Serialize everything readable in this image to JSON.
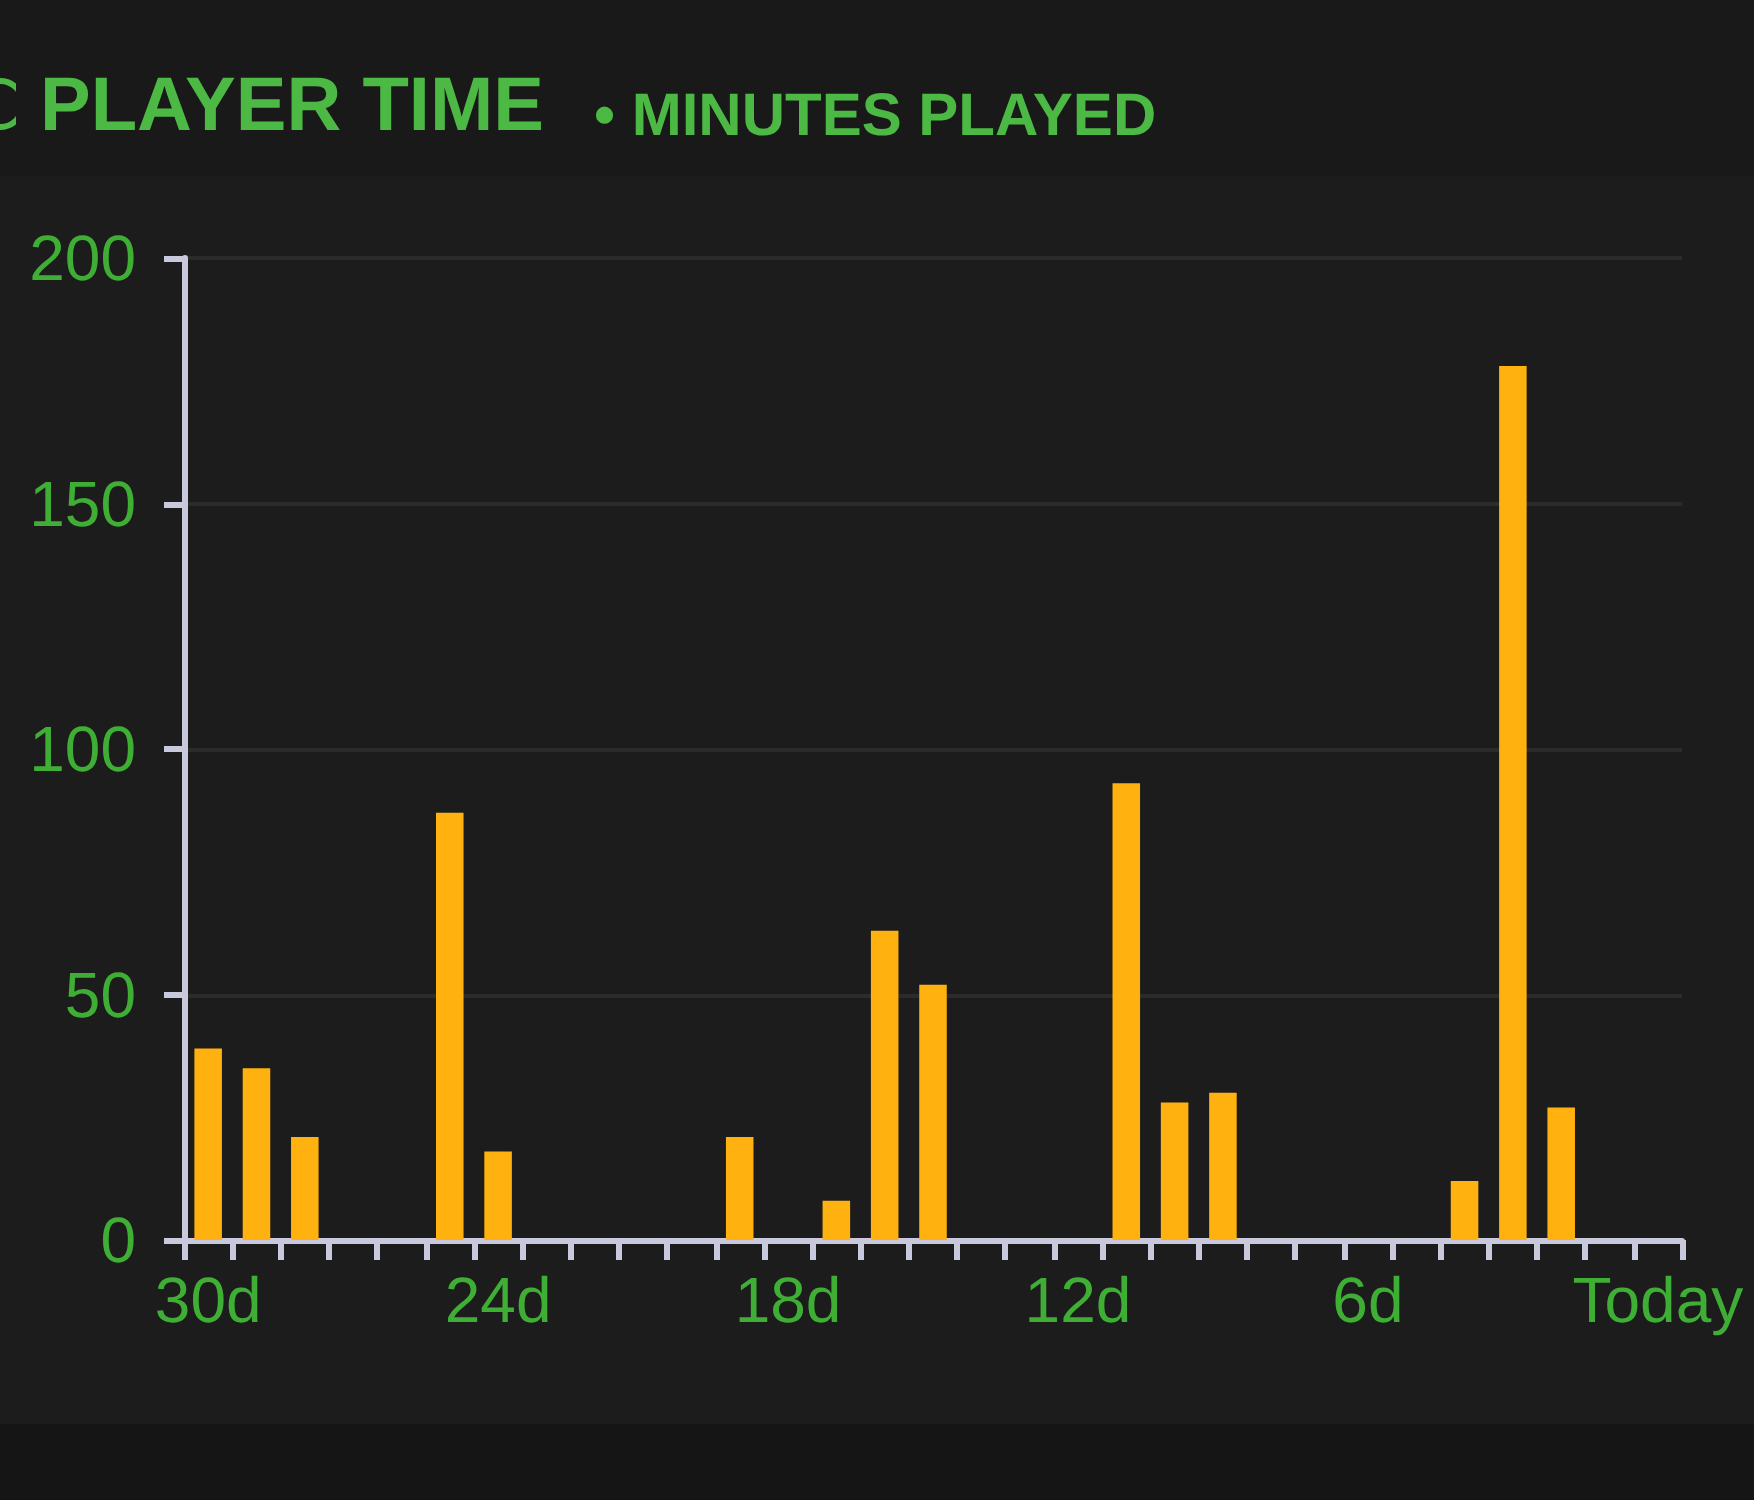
{
  "chart_data": {
    "type": "bar",
    "title": "PLAYER TIME",
    "subtitle": "• MINUTES PLAYED",
    "categories": [
      "30d",
      null,
      null,
      null,
      null,
      null,
      "24d",
      null,
      null,
      null,
      null,
      null,
      "18d",
      null,
      null,
      null,
      null,
      null,
      "12d",
      null,
      null,
      null,
      null,
      null,
      "6d",
      null,
      null,
      null,
      null,
      null,
      "Today"
    ],
    "values": [
      39,
      35,
      21,
      null,
      null,
      87,
      18,
      null,
      null,
      null,
      null,
      21,
      null,
      8,
      63,
      52,
      null,
      null,
      null,
      93,
      28,
      30,
      null,
      null,
      null,
      null,
      12,
      178,
      27,
      null,
      null
    ],
    "color": "#ffb20f",
    "ylim": [
      0,
      200
    ],
    "yticks": [
      0,
      50,
      100,
      150,
      200
    ],
    "grid": "y"
  }
}
